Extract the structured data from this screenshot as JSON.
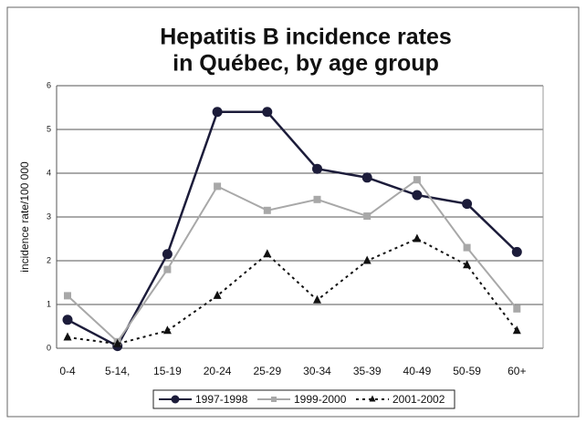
{
  "chart_data": {
    "type": "line",
    "title": [
      "Hepatitis B incidence rates",
      "in Québec, by age group"
    ],
    "y_label": "incidence rate/100 000",
    "categories": [
      "0-4",
      "5-14,",
      "15-19",
      "20-24",
      "25-29",
      "30-34",
      "35-39",
      "40-49",
      "50-59",
      "60+"
    ],
    "series": [
      {
        "name": "1997-1998",
        "color": "#1c1c3a",
        "marker": "circle",
        "dash": "solid",
        "values": [
          0.65,
          0.05,
          2.15,
          5.4,
          5.4,
          4.1,
          3.9,
          3.5,
          3.3,
          2.2
        ]
      },
      {
        "name": "1999-2000",
        "color": "#a8a8a8",
        "marker": "square",
        "dash": "solid",
        "values": [
          1.2,
          0.15,
          1.8,
          3.7,
          3.15,
          3.4,
          3.02,
          3.85,
          2.3,
          0.9
        ]
      },
      {
        "name": "2001-2002",
        "color": "#111111",
        "marker": "triangle",
        "dash": "dotted",
        "values": [
          0.25,
          0.1,
          0.4,
          1.2,
          2.15,
          1.1,
          2.0,
          2.5,
          1.9,
          0.4
        ]
      }
    ],
    "ylim": [
      0,
      6
    ],
    "yticks": [
      0,
      1,
      2,
      3,
      4,
      5,
      6
    ],
    "grid": true,
    "legend": "bottom"
  }
}
